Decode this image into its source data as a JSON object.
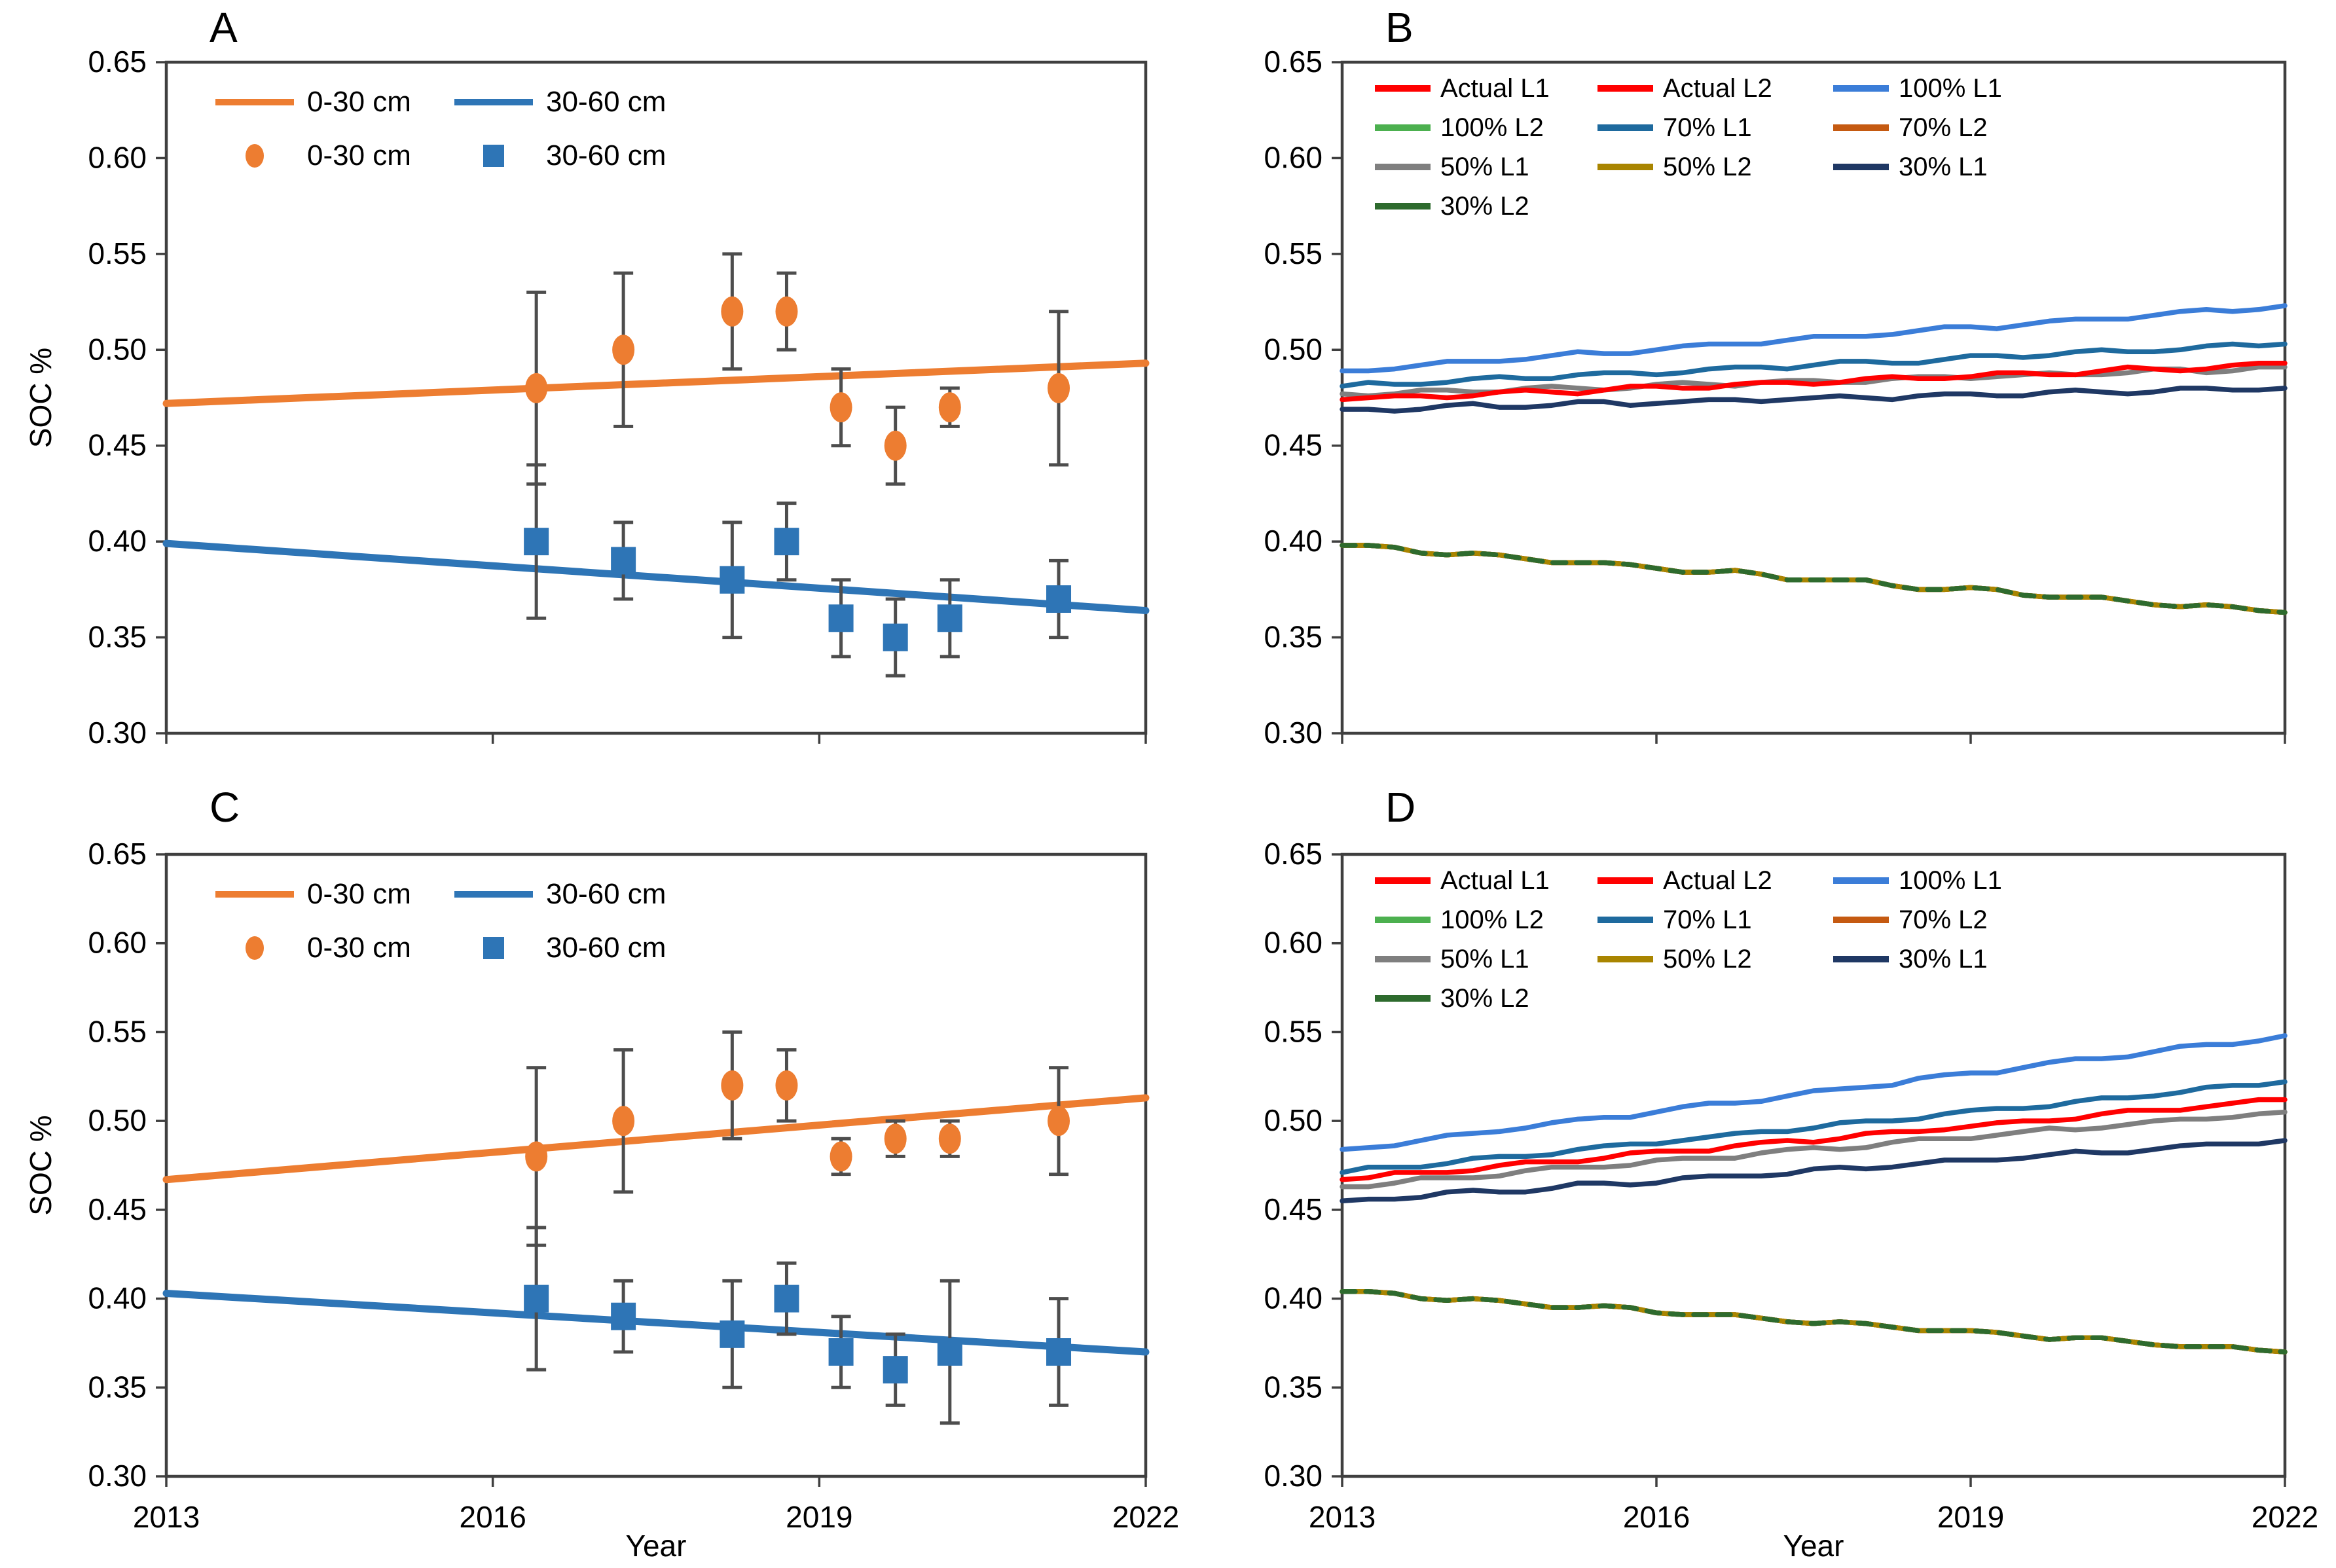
{
  "figure": {
    "xlabel": "Year",
    "ylabel": "SOC %",
    "xlim": [
      2013,
      2022
    ],
    "ylim": [
      0.3,
      0.65
    ],
    "x_ticks": [
      "2013",
      "2016",
      "2019",
      "2022"
    ],
    "y_ticks": [
      "0.30",
      "0.35",
      "0.40",
      "0.45",
      "0.50",
      "0.55",
      "0.60",
      "0.65"
    ]
  },
  "colors": {
    "orange": "#ED7D31",
    "blue": "#2E75B6",
    "red": "#FF0000",
    "light_blue": "#3B7DD8",
    "green": "#4CB04F",
    "teal": "#1E6A9E",
    "burnt_orange": "#C55A11",
    "gray": "#7F7F7F",
    "olive": "#A98500",
    "navy": "#1F3864",
    "dark_green": "#2E6B2E",
    "axis": "#3F3F3F",
    "error_bar": "#4D4D4D"
  },
  "chart_data": [
    {
      "id": "A",
      "label": "A",
      "type": "scatter",
      "legend_lines": [
        {
          "label": "0-30 cm",
          "color": "#ED7D31"
        },
        {
          "label": "30-60 cm",
          "color": "#2E75B6"
        }
      ],
      "legend_markers": [
        {
          "label": "0-30 cm",
          "shape": "circle",
          "color": "#ED7D31"
        },
        {
          "label": "30-60 cm",
          "shape": "square",
          "color": "#2E75B6"
        }
      ],
      "trend_lines": [
        {
          "name": "0-30 cm trend",
          "color": "#ED7D31",
          "x": [
            2013,
            2022
          ],
          "y": [
            0.472,
            0.493
          ]
        },
        {
          "name": "30-60 cm trend",
          "color": "#2E75B6",
          "x": [
            2013,
            2022
          ],
          "y": [
            0.399,
            0.364
          ]
        }
      ],
      "point_series": [
        {
          "name": "0-30 cm observed",
          "shape": "circle",
          "color": "#ED7D31",
          "x": [
            2016.4,
            2017.2,
            2018.2,
            2018.7,
            2019.2,
            2019.7,
            2020.2,
            2021.2
          ],
          "y": [
            0.48,
            0.5,
            0.52,
            0.52,
            0.47,
            0.45,
            0.47,
            0.48
          ],
          "err": [
            0.05,
            0.04,
            0.03,
            0.02,
            0.02,
            0.02,
            0.01,
            0.04
          ]
        },
        {
          "name": "30-60 cm observed",
          "shape": "square",
          "color": "#2E75B6",
          "x": [
            2016.4,
            2017.2,
            2018.2,
            2018.7,
            2019.2,
            2019.7,
            2020.2,
            2021.2
          ],
          "y": [
            0.4,
            0.39,
            0.38,
            0.4,
            0.36,
            0.35,
            0.36,
            0.37
          ],
          "err": [
            0.04,
            0.02,
            0.03,
            0.02,
            0.02,
            0.02,
            0.02,
            0.02
          ]
        }
      ]
    },
    {
      "id": "B",
      "label": "B",
      "type": "line",
      "legend": [
        {
          "label": "Actual L1",
          "color": "#FF0000"
        },
        {
          "label": "Actual L2",
          "color": "#FF0000"
        },
        {
          "label": "100% L1",
          "color": "#3B7DD8"
        },
        {
          "label": "100% L2",
          "color": "#4CB04F"
        },
        {
          "label": "70% L1",
          "color": "#1E6A9E"
        },
        {
          "label": "70% L2",
          "color": "#C55A11"
        },
        {
          "label": "50% L1",
          "color": "#7F7F7F"
        },
        {
          "label": "50% L2",
          "color": "#A98500"
        },
        {
          "label": "30% L1",
          "color": "#1F3864"
        },
        {
          "label": "30% L2",
          "color": "#2E6B2E"
        }
      ],
      "series": [
        {
          "name": "Actual L2",
          "color": "#FF0000",
          "y_start": 0.398,
          "y_end": 0.363,
          "ph": 0
        },
        {
          "name": "100% L2",
          "color": "#4CB04F",
          "y_start": 0.398,
          "y_end": 0.363,
          "ph": 0
        },
        {
          "name": "70% L2",
          "color": "#C55A11",
          "y_start": 0.398,
          "y_end": 0.363,
          "ph": 0
        },
        {
          "name": "50% L2",
          "color": "#A98500",
          "y_start": 0.398,
          "y_end": 0.363,
          "ph": 0
        },
        {
          "name": "30% L2",
          "color": "#2E6B2E",
          "y_start": 0.398,
          "y_end": 0.363,
          "ph": 0,
          "dash": true
        },
        {
          "name": "30% L1",
          "color": "#1F3864",
          "y_start": 0.469,
          "y_end": 0.48,
          "ph": 1
        },
        {
          "name": "50% L1",
          "color": "#7F7F7F",
          "y_start": 0.4765,
          "y_end": 0.4905,
          "ph": 2
        },
        {
          "name": "Actual L1",
          "color": "#FF0000",
          "y_start": 0.474,
          "y_end": 0.4925,
          "ph": 3
        },
        {
          "name": "70% L1",
          "color": "#1E6A9E",
          "y_start": 0.481,
          "y_end": 0.503,
          "ph": 4
        },
        {
          "name": "100% L1",
          "color": "#3B7DD8",
          "y_start": 0.489,
          "y_end": 0.523,
          "ph": 5
        }
      ]
    },
    {
      "id": "C",
      "label": "C",
      "type": "scatter",
      "legend_lines": [
        {
          "label": "0-30 cm",
          "color": "#ED7D31"
        },
        {
          "label": "30-60 cm",
          "color": "#2E75B6"
        }
      ],
      "legend_markers": [
        {
          "label": "0-30 cm",
          "shape": "circle",
          "color": "#ED7D31"
        },
        {
          "label": "30-60 cm",
          "shape": "square",
          "color": "#2E75B6"
        }
      ],
      "trend_lines": [
        {
          "name": "0-30 cm trend",
          "color": "#ED7D31",
          "x": [
            2013,
            2022
          ],
          "y": [
            0.467,
            0.513
          ]
        },
        {
          "name": "30-60 cm trend",
          "color": "#2E75B6",
          "x": [
            2013,
            2022
          ],
          "y": [
            0.403,
            0.37
          ]
        }
      ],
      "point_series": [
        {
          "name": "0-30 cm observed",
          "shape": "circle",
          "color": "#ED7D31",
          "x": [
            2016.4,
            2017.2,
            2018.2,
            2018.7,
            2019.2,
            2019.7,
            2020.2,
            2021.2
          ],
          "y": [
            0.48,
            0.5,
            0.52,
            0.52,
            0.48,
            0.49,
            0.49,
            0.5
          ],
          "err": [
            0.05,
            0.04,
            0.03,
            0.02,
            0.01,
            0.01,
            0.01,
            0.03
          ]
        },
        {
          "name": "30-60 cm observed",
          "shape": "square",
          "color": "#2E75B6",
          "x": [
            2016.4,
            2017.2,
            2018.2,
            2018.7,
            2019.2,
            2019.7,
            2020.2,
            2021.2
          ],
          "y": [
            0.4,
            0.39,
            0.38,
            0.4,
            0.37,
            0.36,
            0.37,
            0.37
          ],
          "err": [
            0.04,
            0.02,
            0.03,
            0.02,
            0.02,
            0.02,
            0.04,
            0.03
          ]
        }
      ]
    },
    {
      "id": "D",
      "label": "D",
      "type": "line",
      "legend": [
        {
          "label": "Actual L1",
          "color": "#FF0000"
        },
        {
          "label": "Actual L2",
          "color": "#FF0000"
        },
        {
          "label": "100% L1",
          "color": "#3B7DD8"
        },
        {
          "label": "100% L2",
          "color": "#4CB04F"
        },
        {
          "label": "70% L1",
          "color": "#1E6A9E"
        },
        {
          "label": "70% L2",
          "color": "#C55A11"
        },
        {
          "label": "50% L1",
          "color": "#7F7F7F"
        },
        {
          "label": "50% L2",
          "color": "#A98500"
        },
        {
          "label": "30% L1",
          "color": "#1F3864"
        },
        {
          "label": "30% L2",
          "color": "#2E6B2E"
        }
      ],
      "series": [
        {
          "name": "Actual L2",
          "color": "#FF0000",
          "y_start": 0.404,
          "y_end": 0.37,
          "ph": 0
        },
        {
          "name": "100% L2",
          "color": "#4CB04F",
          "y_start": 0.404,
          "y_end": 0.37,
          "ph": 0
        },
        {
          "name": "70% L2",
          "color": "#C55A11",
          "y_start": 0.404,
          "y_end": 0.37,
          "ph": 0
        },
        {
          "name": "50% L2",
          "color": "#A98500",
          "y_start": 0.404,
          "y_end": 0.37,
          "ph": 0
        },
        {
          "name": "30% L2",
          "color": "#2E6B2E",
          "y_start": 0.404,
          "y_end": 0.37,
          "ph": 0,
          "dash": true
        },
        {
          "name": "30% L1",
          "color": "#1F3864",
          "y_start": 0.455,
          "y_end": 0.489,
          "ph": 1
        },
        {
          "name": "50% L1",
          "color": "#7F7F7F",
          "y_start": 0.463,
          "y_end": 0.505,
          "ph": 2
        },
        {
          "name": "Actual L1",
          "color": "#FF0000",
          "y_start": 0.467,
          "y_end": 0.512,
          "ph": 3
        },
        {
          "name": "70% L1",
          "color": "#1E6A9E",
          "y_start": 0.471,
          "y_end": 0.522,
          "ph": 4
        },
        {
          "name": "100% L1",
          "color": "#3B7DD8",
          "y_start": 0.484,
          "y_end": 0.548,
          "ph": 5
        }
      ]
    }
  ]
}
